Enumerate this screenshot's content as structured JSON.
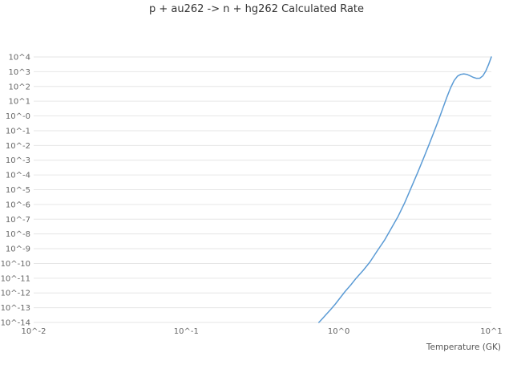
{
  "chart_data": {
    "type": "line",
    "title": "p + au262 -> n + hg262 Calculated Rate",
    "xlabel": "Temperature (GK)",
    "ylabel": "",
    "x_scale": "log",
    "y_scale": "log",
    "xlim_log10": [
      -2,
      1
    ],
    "ylim_log10": [
      -14,
      4
    ],
    "grid": "horizontal",
    "legend": "none",
    "x_ticks": [
      {
        "log10": -2,
        "label": "10^-2"
      },
      {
        "log10": -1,
        "label": "10^-1"
      },
      {
        "log10": 0,
        "label": "10^0"
      },
      {
        "log10": 1,
        "label": "10^1"
      }
    ],
    "y_ticks": [
      {
        "log10": 4,
        "label": "10^4"
      },
      {
        "log10": 3,
        "label": "10^3"
      },
      {
        "log10": 2,
        "label": "10^2"
      },
      {
        "log10": 1,
        "label": "10^1"
      },
      {
        "log10": 0,
        "label": "10^-0"
      },
      {
        "log10": -1,
        "label": "10^-1"
      },
      {
        "log10": -2,
        "label": "10^-2"
      },
      {
        "log10": -3,
        "label": "10^-3"
      },
      {
        "log10": -4,
        "label": "10^-4"
      },
      {
        "log10": -5,
        "label": "10^-5"
      },
      {
        "log10": -6,
        "label": "10^-6"
      },
      {
        "log10": -7,
        "label": "10^-7"
      },
      {
        "log10": -8,
        "label": "10^-8"
      },
      {
        "log10": -9,
        "label": "10^-9"
      },
      {
        "log10": -10,
        "label": "10^-10"
      },
      {
        "log10": -11,
        "label": "10^-11"
      },
      {
        "log10": -12,
        "label": "10^-12"
      },
      {
        "log10": -13,
        "label": "10^-13"
      },
      {
        "log10": -14,
        "label": "10^-14"
      }
    ],
    "series": [
      {
        "name": "calculated-rate",
        "color": "#5b9bd5",
        "points_x_gk_log10rate": [
          [
            0.74,
            -14.0
          ],
          [
            0.78,
            -13.75
          ],
          [
            0.82,
            -13.5
          ],
          [
            0.88,
            -13.15
          ],
          [
            0.95,
            -12.75
          ],
          [
            1.0,
            -12.45
          ],
          [
            1.1,
            -11.9
          ],
          [
            1.2,
            -11.45
          ],
          [
            1.3,
            -11.0
          ],
          [
            1.45,
            -10.45
          ],
          [
            1.6,
            -9.9
          ],
          [
            1.8,
            -9.1
          ],
          [
            2.0,
            -8.4
          ],
          [
            2.2,
            -7.65
          ],
          [
            2.45,
            -6.8
          ],
          [
            2.7,
            -5.9
          ],
          [
            3.0,
            -4.8
          ],
          [
            3.3,
            -3.8
          ],
          [
            3.6,
            -2.85
          ],
          [
            3.9,
            -1.95
          ],
          [
            4.2,
            -1.1
          ],
          [
            4.5,
            -0.3
          ],
          [
            4.8,
            0.5
          ],
          [
            5.1,
            1.25
          ],
          [
            5.4,
            1.9
          ],
          [
            5.7,
            2.4
          ],
          [
            6.0,
            2.7
          ],
          [
            6.3,
            2.82
          ],
          [
            6.6,
            2.85
          ],
          [
            6.9,
            2.82
          ],
          [
            7.2,
            2.74
          ],
          [
            7.6,
            2.62
          ],
          [
            8.0,
            2.55
          ],
          [
            8.4,
            2.56
          ],
          [
            8.8,
            2.72
          ],
          [
            9.2,
            3.05
          ],
          [
            9.6,
            3.5
          ],
          [
            10.0,
            4.0
          ]
        ]
      }
    ]
  }
}
